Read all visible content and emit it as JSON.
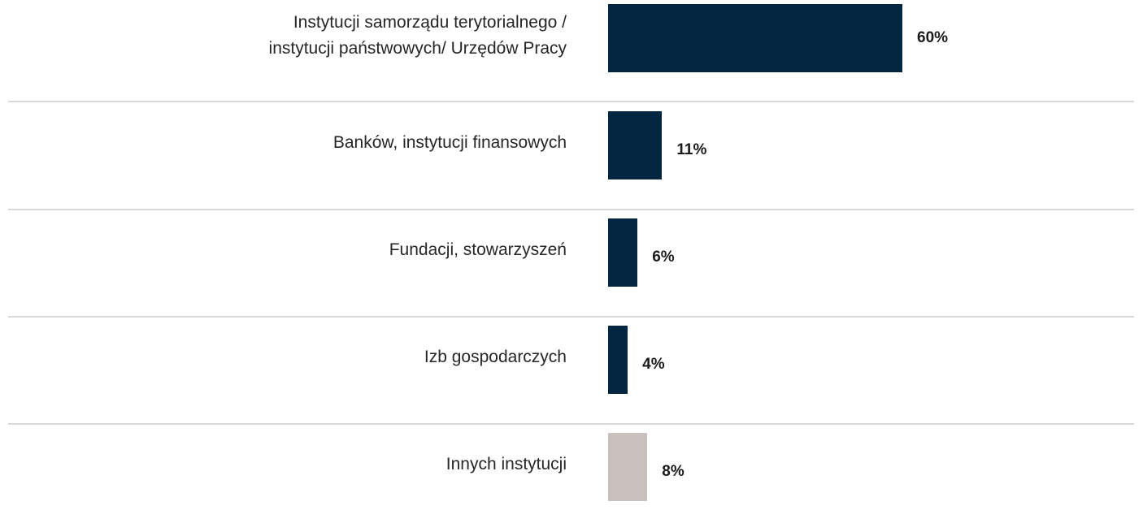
{
  "chart_data": {
    "type": "bar",
    "orientation": "horizontal",
    "categories": [
      "Instytucji samorządu terytorialnego /\ninstytucji państwowych/ Urzędów Pracy",
      "Banków, instytucji finansowych",
      "Fundacji, stowarzyszeń",
      "Izb gospodarczych",
      "Innych instytucji"
    ],
    "values": [
      60,
      11,
      6,
      4,
      8
    ],
    "value_labels": [
      "60%",
      "11%",
      "6%",
      "4%",
      "8%"
    ],
    "colors": [
      "#022640",
      "#022640",
      "#022640",
      "#022640",
      "#c9c0bb"
    ]
  }
}
